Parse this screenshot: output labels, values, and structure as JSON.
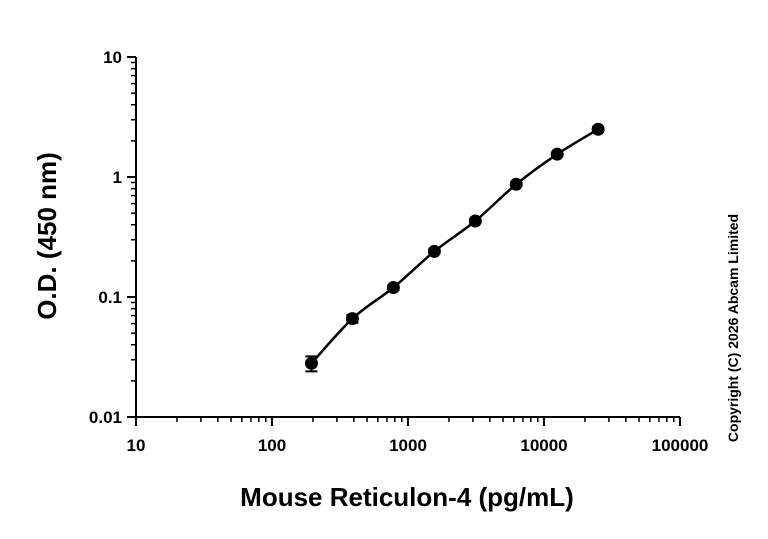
{
  "chart_data": {
    "type": "scatter",
    "xlabel": "Mouse Reticulon-4 (pg/mL)",
    "ylabel": "O.D. (450 nm)",
    "xscale": "log",
    "yscale": "log",
    "xlim": [
      10,
      100000
    ],
    "ylim": [
      0.01,
      10
    ],
    "x_ticks": [
      10,
      100,
      1000,
      10000,
      100000
    ],
    "x_tick_labels": [
      "10",
      "100",
      "1000",
      "10000",
      "100000"
    ],
    "y_ticks": [
      0.01,
      0.1,
      1,
      10
    ],
    "y_tick_labels": [
      "0.01",
      "0.1",
      "1",
      "10"
    ],
    "grid": false,
    "series": [
      {
        "x": [
          195,
          390,
          781,
          1563,
          3125,
          6250,
          12500,
          25000
        ],
        "y": [
          0.028,
          0.066,
          0.12,
          0.24,
          0.43,
          0.87,
          1.55,
          2.5
        ],
        "y_err": [
          0.004,
          0.005,
          0.005,
          0.008,
          0.015,
          0.03,
          0.05,
          0.12
        ]
      }
    ],
    "fit_line": true,
    "color": "#000000"
  },
  "copyright": "Copyright (C) 2026 Abcam Limited"
}
